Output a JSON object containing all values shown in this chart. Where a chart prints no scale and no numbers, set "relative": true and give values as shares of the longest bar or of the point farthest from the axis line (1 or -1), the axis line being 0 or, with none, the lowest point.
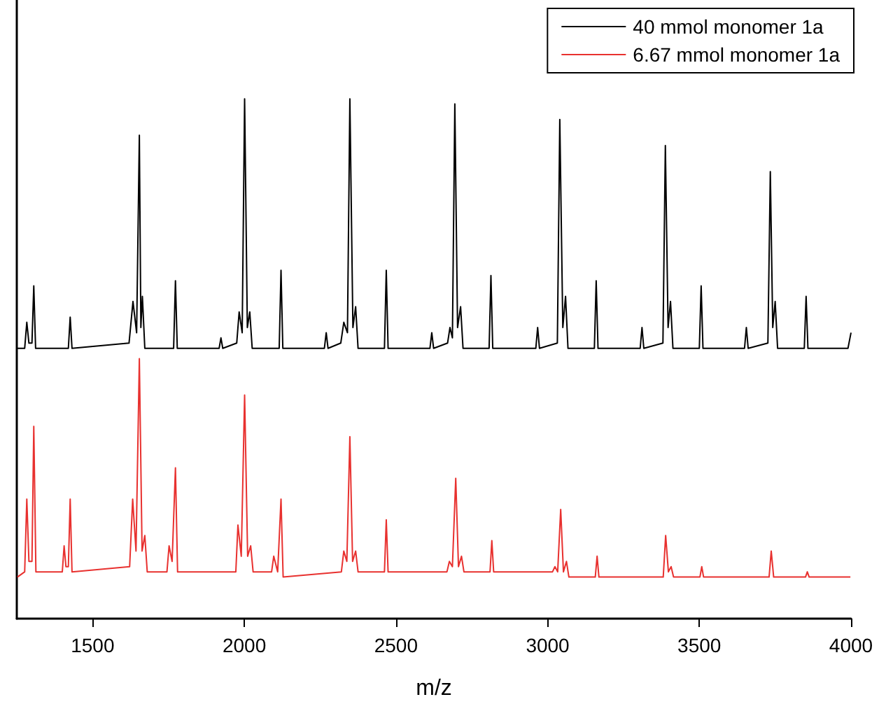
{
  "chart_data": {
    "type": "line",
    "relative": true,
    "xlabel": "m/z",
    "xlim": [
      1250,
      4000
    ],
    "xticks": [
      1500,
      2000,
      2500,
      3000,
      3500,
      4000
    ],
    "legend": "top right",
    "grid": false,
    "series": [
      {
        "name": "40 mmol monomer 1a",
        "color": "#000000",
        "x": [
          1250,
          1276,
          1283,
          1290,
          1300,
          1306,
          1312,
          1420,
          1426,
          1432,
          1620,
          1633,
          1645,
          1654,
          1659,
          1664,
          1672,
          1767,
          1773,
          1779,
          1917,
          1923,
          1929,
          1975,
          1983,
          1993,
          2001,
          2010,
          2018,
          2026,
          2115,
          2121,
          2127,
          2264,
          2270,
          2276,
          2318,
          2328,
          2340,
          2348,
          2358,
          2367,
          2375,
          2462,
          2468,
          2474,
          2612,
          2618,
          2624,
          2670,
          2678,
          2686,
          2694,
          2703,
          2713,
          2721,
          2807,
          2813,
          2819,
          2961,
          2967,
          2973,
          3032,
          3040,
          3050,
          3059,
          3067,
          3154,
          3160,
          3166,
          3305,
          3311,
          3317,
          3380,
          3388,
          3397,
          3405,
          3413,
          3500,
          3506,
          3512,
          3649,
          3655,
          3661,
          3726,
          3734,
          3742,
          3750,
          3758,
          3846,
          3852,
          3858,
          3990,
          4000
        ],
        "values": [
          0.52,
          0.52,
          0.57,
          0.53,
          0.53,
          0.64,
          0.52,
          0.52,
          0.58,
          0.52,
          0.53,
          0.61,
          0.55,
          0.93,
          0.56,
          0.62,
          0.52,
          0.52,
          0.65,
          0.52,
          0.52,
          0.54,
          0.52,
          0.53,
          0.59,
          0.55,
          1.0,
          0.56,
          0.59,
          0.52,
          0.52,
          0.67,
          0.52,
          0.52,
          0.55,
          0.52,
          0.53,
          0.57,
          0.55,
          1.0,
          0.56,
          0.6,
          0.52,
          0.52,
          0.67,
          0.52,
          0.52,
          0.55,
          0.52,
          0.53,
          0.56,
          0.54,
          0.99,
          0.56,
          0.6,
          0.52,
          0.52,
          0.66,
          0.52,
          0.52,
          0.56,
          0.52,
          0.53,
          0.96,
          0.56,
          0.62,
          0.52,
          0.52,
          0.65,
          0.52,
          0.52,
          0.56,
          0.52,
          0.53,
          0.91,
          0.56,
          0.61,
          0.52,
          0.52,
          0.64,
          0.52,
          0.52,
          0.56,
          0.52,
          0.53,
          0.86,
          0.56,
          0.61,
          0.52,
          0.52,
          0.62,
          0.52,
          0.52,
          0.55
        ]
      },
      {
        "name": "6.67 mmol monomer 1a",
        "color": "#e8312f",
        "x": [
          1252,
          1276,
          1283,
          1290,
          1300,
          1306,
          1313,
          1400,
          1406,
          1412,
          1420,
          1426,
          1432,
          1622,
          1632,
          1643,
          1654,
          1663,
          1672,
          1680,
          1745,
          1752,
          1762,
          1773,
          1780,
          1972,
          1979,
          1990,
          2001,
          2011,
          2021,
          2029,
          2090,
          2097,
          2110,
          2121,
          2128,
          2320,
          2328,
          2338,
          2348,
          2357,
          2367,
          2375,
          2462,
          2468,
          2474,
          2668,
          2676,
          2686,
          2697,
          2706,
          2716,
          2724,
          2810,
          2816,
          2822,
          3016,
          3024,
          3033,
          3043,
          3052,
          3062,
          3070,
          3157,
          3163,
          3169,
          3381,
          3389,
          3398,
          3407,
          3415,
          3502,
          3508,
          3514,
          3730,
          3737,
          3745,
          3850,
          3856,
          3862,
          3998
        ],
        "values": [
          0.08,
          0.09,
          0.23,
          0.11,
          0.11,
          0.37,
          0.09,
          0.09,
          0.14,
          0.1,
          0.1,
          0.23,
          0.09,
          0.1,
          0.23,
          0.13,
          0.5,
          0.13,
          0.16,
          0.09,
          0.09,
          0.14,
          0.11,
          0.29,
          0.09,
          0.09,
          0.18,
          0.12,
          0.43,
          0.12,
          0.14,
          0.09,
          0.09,
          0.12,
          0.09,
          0.23,
          0.08,
          0.09,
          0.13,
          0.11,
          0.35,
          0.11,
          0.13,
          0.09,
          0.09,
          0.19,
          0.09,
          0.09,
          0.11,
          0.1,
          0.27,
          0.1,
          0.12,
          0.09,
          0.09,
          0.15,
          0.09,
          0.09,
          0.1,
          0.09,
          0.21,
          0.09,
          0.11,
          0.08,
          0.08,
          0.12,
          0.08,
          0.08,
          0.16,
          0.09,
          0.1,
          0.08,
          0.08,
          0.1,
          0.08,
          0.08,
          0.13,
          0.08,
          0.08,
          0.09,
          0.08,
          0.08
        ]
      }
    ]
  }
}
